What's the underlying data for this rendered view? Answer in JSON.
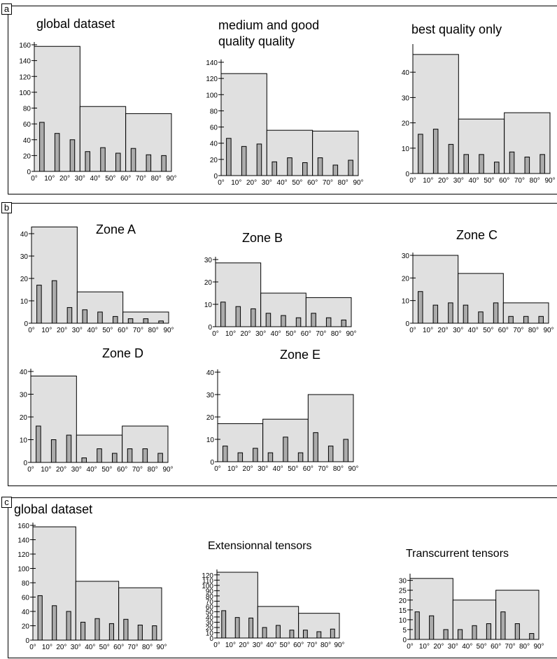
{
  "panels": {
    "a": {
      "label": "a"
    },
    "b": {
      "label": "b"
    },
    "c": {
      "label": "c"
    }
  },
  "x_tick_labels": [
    "0°",
    "10°",
    "20°",
    "30°",
    "40°",
    "50°",
    "60°",
    "70°",
    "80°",
    "90°"
  ],
  "colors": {
    "bar_fill": "#ababab",
    "group_fill": "#e0e0e0",
    "stroke": "#000000"
  },
  "chart_data": [
    {
      "id": "a1",
      "panel": "a",
      "type": "bar",
      "title": [
        "global dataset"
      ],
      "yticks": [
        0,
        20,
        40,
        60,
        80,
        100,
        120,
        140,
        160
      ],
      "ylim": [
        0,
        160
      ],
      "groups": [
        158,
        82,
        73
      ],
      "values": [
        62,
        48,
        40,
        25,
        30,
        23,
        29,
        21,
        20
      ]
    },
    {
      "id": "a2",
      "panel": "a",
      "type": "bar",
      "title": [
        "medium and good",
        "quality quality"
      ],
      "yticks": [
        0,
        20,
        40,
        60,
        80,
        100,
        120,
        140
      ],
      "ylim": [
        0,
        140
      ],
      "groups": [
        126,
        56,
        55
      ],
      "values": [
        46,
        36,
        39,
        17,
        22,
        16,
        22,
        13,
        19
      ]
    },
    {
      "id": "a3",
      "panel": "a",
      "type": "bar",
      "title": [
        "best quality only"
      ],
      "yticks": [
        0,
        10,
        20,
        30,
        40
      ],
      "ylim": [
        0,
        50
      ],
      "groups": [
        47,
        21.5,
        24
      ],
      "values": [
        15.5,
        17.5,
        11.5,
        7.5,
        7.5,
        4.5,
        8.5,
        6.5,
        7.5
      ]
    },
    {
      "id": "b1",
      "panel": "b",
      "type": "bar",
      "title": [
        "Zone A"
      ],
      "yticks": [
        0,
        10,
        20,
        30,
        40
      ],
      "ylim": [
        0,
        40
      ],
      "groups": [
        43,
        14,
        5
      ],
      "values": [
        17,
        19,
        7,
        6,
        5,
        3,
        2,
        2,
        1
      ]
    },
    {
      "id": "b2",
      "panel": "b",
      "type": "bar",
      "title": [
        "Zone B"
      ],
      "yticks": [
        0,
        10,
        20,
        30
      ],
      "ylim": [
        0,
        30
      ],
      "groups": [
        28.5,
        15,
        13
      ],
      "values": [
        11,
        9,
        8,
        6,
        5,
        4,
        6,
        4,
        3
      ]
    },
    {
      "id": "b3",
      "panel": "b",
      "type": "bar",
      "title": [
        "Zone C"
      ],
      "yticks": [
        0,
        10,
        20,
        30
      ],
      "ylim": [
        0,
        30
      ],
      "groups": [
        30,
        22,
        9
      ],
      "values": [
        14,
        8,
        9,
        8,
        5,
        9,
        3,
        3,
        3
      ]
    },
    {
      "id": "b4",
      "panel": "b",
      "type": "bar",
      "title": [
        "Zone D"
      ],
      "yticks": [
        0,
        10,
        20,
        30,
        40
      ],
      "ylim": [
        0,
        40
      ],
      "groups": [
        38,
        12,
        16
      ],
      "values": [
        16,
        10,
        12,
        2,
        6,
        4,
        6,
        6,
        4
      ]
    },
    {
      "id": "b5",
      "panel": "b",
      "type": "bar",
      "title": [
        "Zone E"
      ],
      "yticks": [
        0,
        10,
        20,
        30,
        40
      ],
      "ylim": [
        0,
        40
      ],
      "groups": [
        17,
        19,
        30
      ],
      "values": [
        7,
        4,
        6,
        4,
        11,
        4,
        13,
        7,
        10
      ]
    },
    {
      "id": "c1",
      "panel": "c",
      "type": "bar",
      "title": [
        "global dataset"
      ],
      "yticks": [
        0,
        20,
        40,
        60,
        80,
        100,
        120,
        140,
        160
      ],
      "ylim": [
        0,
        160
      ],
      "groups": [
        158,
        82,
        73
      ],
      "values": [
        62,
        48,
        40,
        25,
        30,
        23,
        29,
        21,
        20
      ]
    },
    {
      "id": "c2",
      "panel": "c",
      "type": "bar",
      "title": [
        "Extensionnal tensors"
      ],
      "yticks": [
        0,
        10,
        20,
        30,
        40,
        50,
        60,
        70,
        80,
        90,
        100,
        110,
        120
      ],
      "ylim": [
        0,
        125
      ],
      "groups": [
        125,
        60,
        47
      ],
      "values": [
        52,
        39,
        38,
        20,
        24,
        15,
        15,
        12,
        17
      ]
    },
    {
      "id": "c3",
      "panel": "c",
      "type": "bar",
      "title": [
        "Transcurrent tensors"
      ],
      "yticks": [
        0,
        5,
        10,
        15,
        20,
        25,
        30
      ],
      "ylim": [
        0,
        32
      ],
      "groups": [
        31,
        20,
        25
      ],
      "values": [
        14,
        12,
        5,
        5,
        7,
        8,
        14,
        8,
        3
      ]
    }
  ]
}
